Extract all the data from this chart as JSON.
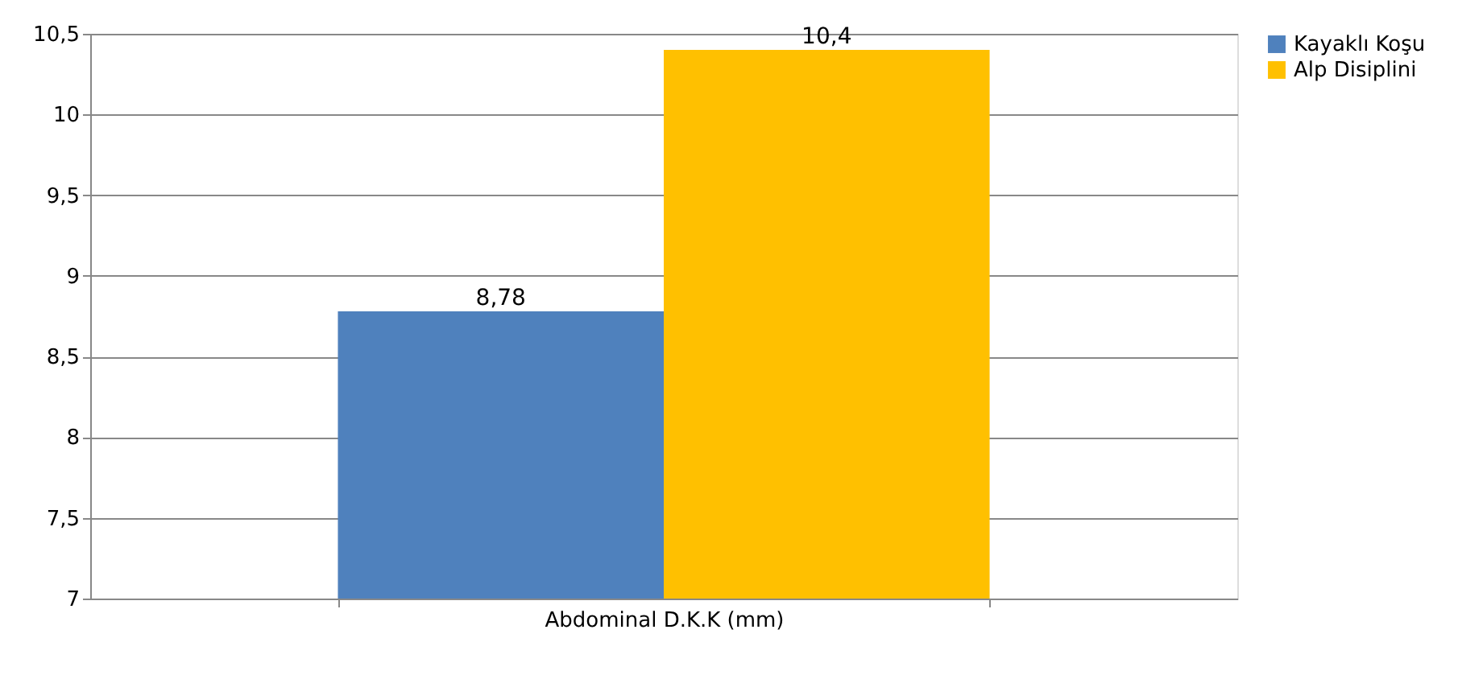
{
  "chart_data": {
    "type": "bar",
    "categories": [
      "Abdominal D.K.K (mm)"
    ],
    "series": [
      {
        "name": "Kayaklı Koşu",
        "color": "#4f81bd",
        "values": [
          8.78
        ],
        "value_labels": [
          "8,78"
        ]
      },
      {
        "name": "Alp Disiplini",
        "color": "#ffc000",
        "values": [
          10.4
        ],
        "value_labels": [
          "10,4"
        ]
      }
    ],
    "ylim": [
      7,
      10.5
    ],
    "yticks": [
      7,
      {
        "value": 7.5,
        "label": "7,5"
      },
      8,
      {
        "value": 8.5,
        "label": "8,5"
      },
      9,
      {
        "value": 9.5,
        "label": "9,5"
      },
      10,
      {
        "value": 10.5,
        "label": "10,5"
      }
    ],
    "grid": "y",
    "legend": "right"
  }
}
